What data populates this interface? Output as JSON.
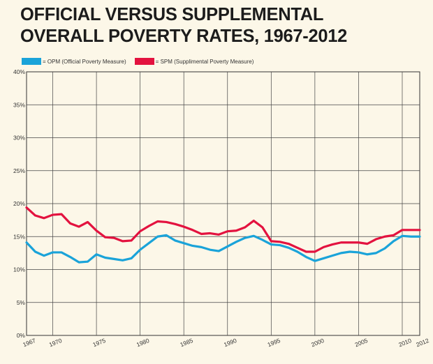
{
  "title_line1": "OFFICIAL VERSUS SUPPLEMENTAL",
  "title_line2": "OVERALL POVERTY RATES, 1967-2012",
  "colors": {
    "opm": "#1aa3d9",
    "spm": "#e3123f",
    "background": "#fcf7e8"
  },
  "legend": {
    "opm_label": "= OPM (Official Poverty Measure)",
    "spm_label": "= SPM (Supplimental Poverty Measure)"
  },
  "chart_data": {
    "type": "line",
    "title": "OFFICIAL VERSUS SUPPLEMENTAL OVERALL POVERTY RATES, 1967-2012",
    "xlabel": "",
    "ylabel": "",
    "xlim": [
      1967,
      2012
    ],
    "ylim": [
      0,
      40
    ],
    "grid": true,
    "legend_position": "top-left",
    "x_ticks": [
      "1967",
      "1970",
      "1975",
      "1980",
      "1985",
      "1990",
      "1995",
      "2000",
      "2005",
      "2010",
      "2012"
    ],
    "x_tick_values": [
      1967,
      1970,
      1975,
      1980,
      1985,
      1990,
      1995,
      2000,
      2005,
      2010,
      2012
    ],
    "y_ticks": [
      "0%",
      "5%",
      "10%",
      "15%",
      "20%",
      "25%",
      "30%",
      "35%",
      "40%"
    ],
    "y_tick_values": [
      0,
      5,
      10,
      15,
      20,
      25,
      30,
      35,
      40
    ],
    "x": [
      1967,
      1968,
      1969,
      1970,
      1971,
      1972,
      1973,
      1974,
      1975,
      1976,
      1977,
      1978,
      1979,
      1980,
      1981,
      1982,
      1983,
      1984,
      1985,
      1986,
      1987,
      1988,
      1989,
      1990,
      1991,
      1992,
      1993,
      1994,
      1995,
      1996,
      1997,
      1998,
      1999,
      2000,
      2001,
      2002,
      2003,
      2004,
      2005,
      2006,
      2007,
      2008,
      2009,
      2010,
      2011,
      2012
    ],
    "series": [
      {
        "name": "OPM (Official Poverty Measure)",
        "color": "#1aa3d9",
        "values": [
          14.1,
          12.7,
          12.1,
          12.6,
          12.6,
          11.9,
          11.1,
          11.2,
          12.3,
          11.8,
          11.6,
          11.4,
          11.7,
          13.0,
          14.0,
          15.0,
          15.2,
          14.4,
          14.0,
          13.6,
          13.4,
          13.0,
          12.8,
          13.5,
          14.2,
          14.8,
          15.1,
          14.5,
          13.8,
          13.7,
          13.3,
          12.7,
          11.9,
          11.3,
          11.7,
          12.1,
          12.5,
          12.7,
          12.6,
          12.3,
          12.5,
          13.2,
          14.3,
          15.1,
          15.0,
          15.0
        ]
      },
      {
        "name": "SPM (Supplimental Poverty Measure)",
        "color": "#e3123f",
        "values": [
          19.4,
          18.2,
          17.8,
          18.3,
          18.4,
          17.0,
          16.5,
          17.2,
          15.9,
          14.9,
          14.8,
          14.3,
          14.4,
          15.8,
          16.6,
          17.3,
          17.2,
          16.9,
          16.5,
          16.0,
          15.4,
          15.5,
          15.3,
          15.8,
          15.9,
          16.4,
          17.4,
          16.4,
          14.3,
          14.2,
          13.9,
          13.3,
          12.7,
          12.7,
          13.4,
          13.8,
          14.1,
          14.1,
          14.1,
          13.9,
          14.6,
          15.0,
          15.2,
          16.0,
          16.0,
          16.0
        ]
      }
    ]
  }
}
